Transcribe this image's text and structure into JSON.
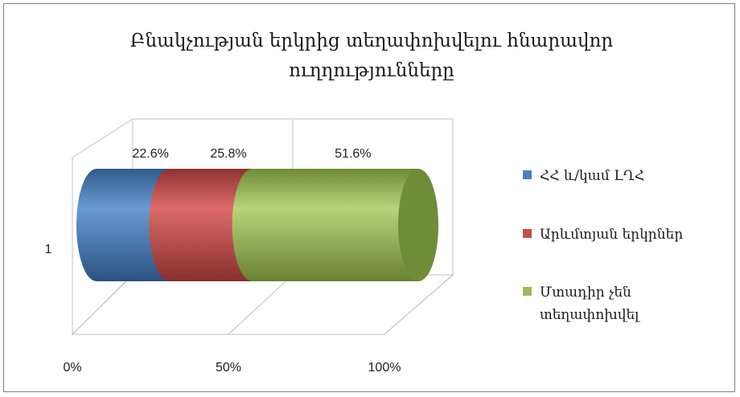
{
  "chart_data": {
    "type": "bar",
    "orientation": "horizontal",
    "stacked": "percent",
    "style": "3d-cylinder",
    "title": "Բնակչության երկրից տեղափոխվելու հնարավոր ուղղությունները",
    "title_lines": [
      "Բնակչության երկրից տեղափոխվելու հնարավոր",
      "ուղղությունները"
    ],
    "categories": [
      "1"
    ],
    "series": [
      {
        "name": "ՀՀ և/կամ ԼՂՀ",
        "values": [
          22.6
        ],
        "label": "22.6%",
        "color": "#4f81bd"
      },
      {
        "name": "Արևմտյան երկրներ",
        "values": [
          25.8
        ],
        "label": "25.8%",
        "color": "#c0504d"
      },
      {
        "name": "Մտադիր չեն տեղափոխվել",
        "values": [
          51.6
        ],
        "label": "51.6%",
        "color": "#9bbb59"
      }
    ],
    "xlim": [
      0,
      100
    ],
    "x_ticks": [
      "0%",
      "50%",
      "100%"
    ],
    "legend_position": "right",
    "grid": true
  }
}
